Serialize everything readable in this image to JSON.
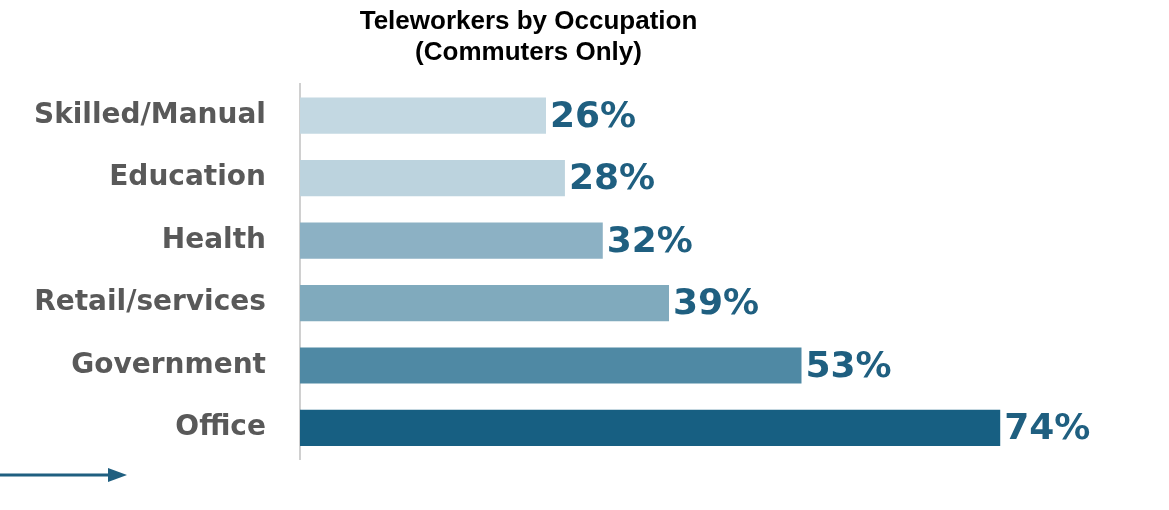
{
  "chart_data": {
    "type": "bar",
    "orientation": "horizontal",
    "title": [
      "Teleworkers by Occupation",
      "(Commuters Only)"
    ],
    "categories": [
      "Skilled/Manual",
      "Education",
      "Health",
      "Retail/services",
      "Government",
      "Office"
    ],
    "values": [
      26,
      28,
      32,
      39,
      53,
      74
    ],
    "colors": [
      "#c3d8e2",
      "#bcd3de",
      "#8cb1c4",
      "#80aabd",
      "#4f89a4",
      "#175f82"
    ],
    "data_labels": true,
    "value_labels": [
      "26%",
      "28%",
      "32%",
      "39%",
      "53%",
      "74%"
    ],
    "tick_labels": "y",
    "legend": false
  }
}
